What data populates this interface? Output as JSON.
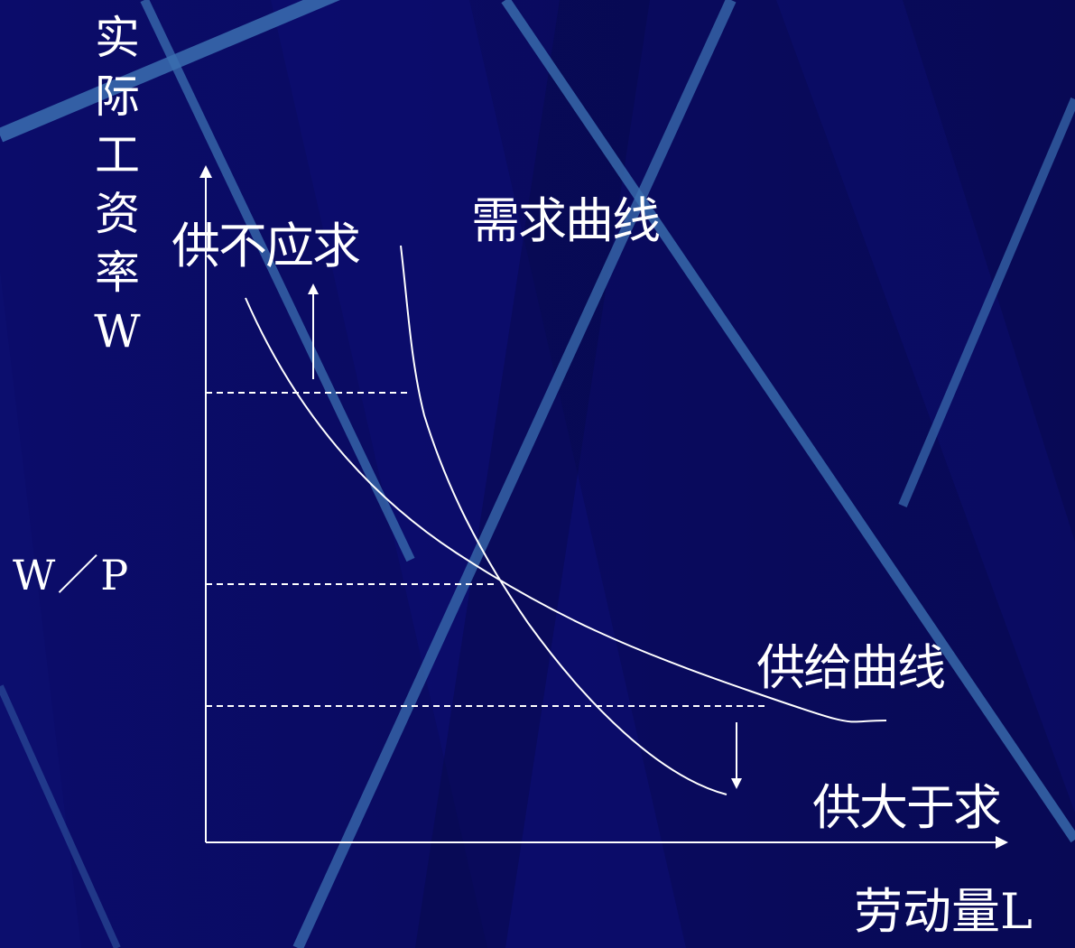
{
  "axes": {
    "y_label": "实际工资率W",
    "x_label": "劳动量L",
    "y_tick_label": "W／P"
  },
  "annotations": {
    "shortage": "供不应求",
    "surplus": "供大于求"
  },
  "curves": {
    "demand_label": "需求曲线",
    "supply_label": "供给曲线"
  },
  "colors": {
    "background": "#0a0b63",
    "stripe_light": "#3b6fb0",
    "stripe_dark": "#06084a",
    "foreground": "#ffffff"
  }
}
